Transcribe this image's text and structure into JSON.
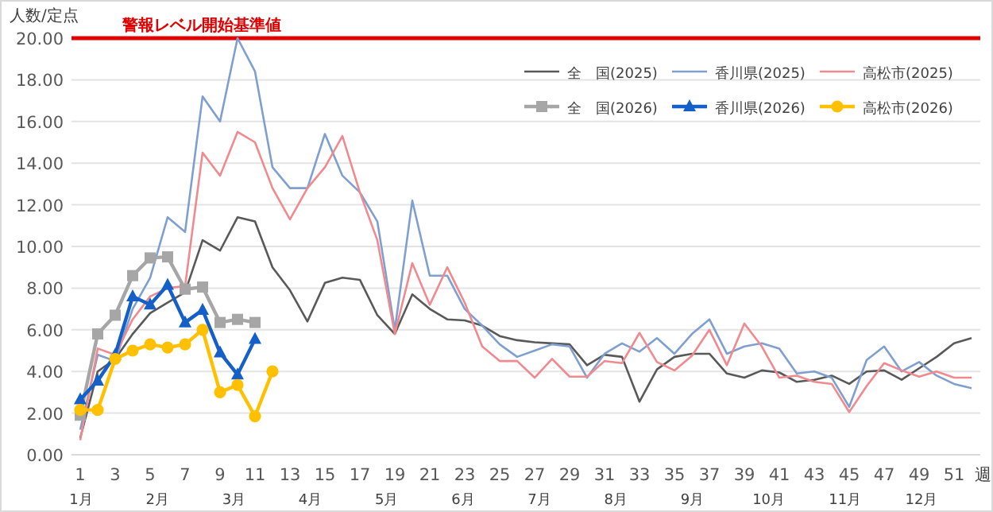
{
  "chart_data": {
    "type": "line",
    "ylabel": "人数/定点",
    "xlabel": "週",
    "ylim": [
      0,
      20
    ],
    "yticks": [
      {
        "value": 0,
        "label": "0.00"
      },
      {
        "value": 2,
        "label": "2.00"
      },
      {
        "value": 4,
        "label": "4.00"
      },
      {
        "value": 6,
        "label": "6.00"
      },
      {
        "value": 8,
        "label": "8.00"
      },
      {
        "value": 10,
        "label": "10.00"
      },
      {
        "value": 12,
        "label": "12.00"
      },
      {
        "value": 14,
        "label": "14.00"
      },
      {
        "value": 16,
        "label": "16.00"
      },
      {
        "value": 18,
        "label": "18.00"
      },
      {
        "value": 20,
        "label": "20.00"
      }
    ],
    "xlim": [
      0.5,
      52.5
    ],
    "xticks": [
      1,
      3,
      5,
      7,
      9,
      11,
      13,
      15,
      17,
      19,
      21,
      23,
      25,
      27,
      29,
      31,
      33,
      35,
      37,
      39,
      41,
      43,
      45,
      47,
      49,
      51
    ],
    "grid": "y",
    "legend": "top right",
    "ref_lines": [
      {
        "axis": "y",
        "value": 20,
        "label": "警報レベル開始基準値",
        "color": "#e00000"
      }
    ],
    "annotations": [
      "1月",
      "2月",
      "3月",
      "4月",
      "5月",
      "6月",
      "7月",
      "8月",
      "9月",
      "10月",
      "11月",
      "12月"
    ],
    "x": [
      1,
      2,
      3,
      4,
      5,
      6,
      7,
      8,
      9,
      10,
      11,
      12,
      13,
      14,
      15,
      16,
      17,
      18,
      19,
      20,
      21,
      22,
      23,
      24,
      25,
      26,
      27,
      28,
      29,
      30,
      31,
      32,
      33,
      34,
      35,
      36,
      37,
      38,
      39,
      40,
      41,
      42,
      43,
      44,
      45,
      46,
      47,
      48,
      49,
      50,
      51,
      52
    ],
    "series": [
      {
        "name": "全　国(2025)",
        "color": "#595959",
        "marker": "none",
        "values": [
          0.8,
          4.0,
          4.6,
          5.8,
          6.8,
          7.3,
          7.8,
          10.3,
          9.8,
          11.4,
          11.2,
          9.0,
          7.9,
          6.4,
          8.25,
          8.5,
          8.4,
          6.7,
          5.8,
          7.7,
          7.0,
          6.5,
          6.45,
          6.2,
          5.7,
          5.5,
          5.4,
          5.35,
          5.3,
          4.3,
          4.8,
          4.7,
          2.55,
          4.1,
          4.7,
          4.85,
          4.85,
          3.9,
          3.7,
          4.05,
          3.95,
          3.5,
          3.6,
          3.8,
          3.4,
          4.0,
          4.05,
          3.6,
          4.15,
          4.7,
          5.35,
          5.6
        ]
      },
      {
        "name": "香川県(2025)",
        "color": "#7f9fd0",
        "marker": "none",
        "values": [
          1.2,
          4.8,
          4.5,
          7.0,
          8.5,
          11.4,
          10.7,
          17.2,
          16.0,
          20.0,
          18.4,
          13.8,
          12.8,
          12.8,
          15.4,
          13.4,
          12.6,
          11.2,
          6.0,
          12.2,
          8.6,
          8.6,
          7.0,
          6.2,
          5.3,
          4.7,
          5.0,
          5.3,
          5.2,
          3.7,
          4.85,
          5.35,
          4.95,
          5.6,
          4.85,
          5.8,
          6.5,
          4.85,
          5.2,
          5.35,
          5.1,
          3.9,
          4.0,
          3.7,
          2.3,
          4.55,
          5.2,
          4.0,
          4.45,
          3.8,
          3.4,
          3.2
        ]
      },
      {
        "name": "高松市(2025)",
        "color": "#f08a8e",
        "marker": "none",
        "values": [
          0.7,
          5.1,
          4.8,
          6.5,
          7.6,
          8.0,
          8.1,
          14.5,
          13.4,
          15.5,
          15.0,
          12.8,
          11.3,
          12.8,
          13.8,
          15.3,
          12.6,
          10.3,
          5.8,
          9.2,
          7.2,
          9.0,
          7.3,
          5.2,
          4.5,
          4.5,
          3.7,
          4.6,
          3.75,
          3.75,
          4.5,
          4.4,
          5.85,
          4.45,
          4.05,
          4.75,
          6.0,
          4.3,
          6.3,
          5.2,
          3.7,
          3.8,
          3.5,
          3.4,
          2.05,
          3.3,
          4.4,
          4.05,
          3.75,
          4.0,
          3.7,
          3.7
        ]
      },
      {
        "name": "全　国(2026)",
        "color": "#a6a6a6",
        "marker": "square",
        "values": [
          1.9,
          5.8,
          6.7,
          8.6,
          9.45,
          9.5,
          7.95,
          8.05,
          6.35,
          6.5,
          6.35,
          null,
          null,
          null,
          null,
          null,
          null,
          null,
          null,
          null,
          null,
          null,
          null,
          null,
          null,
          null,
          null,
          null,
          null,
          null,
          null,
          null,
          null,
          null,
          null,
          null,
          null,
          null,
          null,
          null,
          null,
          null,
          null,
          null,
          null,
          null,
          null,
          null,
          null,
          null,
          null,
          null
        ]
      },
      {
        "name": "香川県(2026)",
        "color": "#1560c8",
        "marker": "triangle",
        "values": [
          2.65,
          3.55,
          4.8,
          7.6,
          7.2,
          8.15,
          6.35,
          6.95,
          4.9,
          3.85,
          5.55,
          null,
          null,
          null,
          null,
          null,
          null,
          null,
          null,
          null,
          null,
          null,
          null,
          null,
          null,
          null,
          null,
          null,
          null,
          null,
          null,
          null,
          null,
          null,
          null,
          null,
          null,
          null,
          null,
          null,
          null,
          null,
          null,
          null,
          null,
          null,
          null,
          null,
          null,
          null,
          null,
          null
        ]
      },
      {
        "name": "高松市(2026)",
        "color": "#ffc000",
        "marker": "circle",
        "values": [
          2.15,
          2.15,
          4.6,
          5.0,
          5.3,
          5.15,
          5.3,
          6.0,
          3.0,
          3.35,
          1.85,
          4.0,
          null,
          null,
          null,
          null,
          null,
          null,
          null,
          null,
          null,
          null,
          null,
          null,
          null,
          null,
          null,
          null,
          null,
          null,
          null,
          null,
          null,
          null,
          null,
          null,
          null,
          null,
          null,
          null,
          null,
          null,
          null,
          null,
          null,
          null,
          null,
          null,
          null,
          null,
          null,
          null
        ]
      }
    ]
  }
}
